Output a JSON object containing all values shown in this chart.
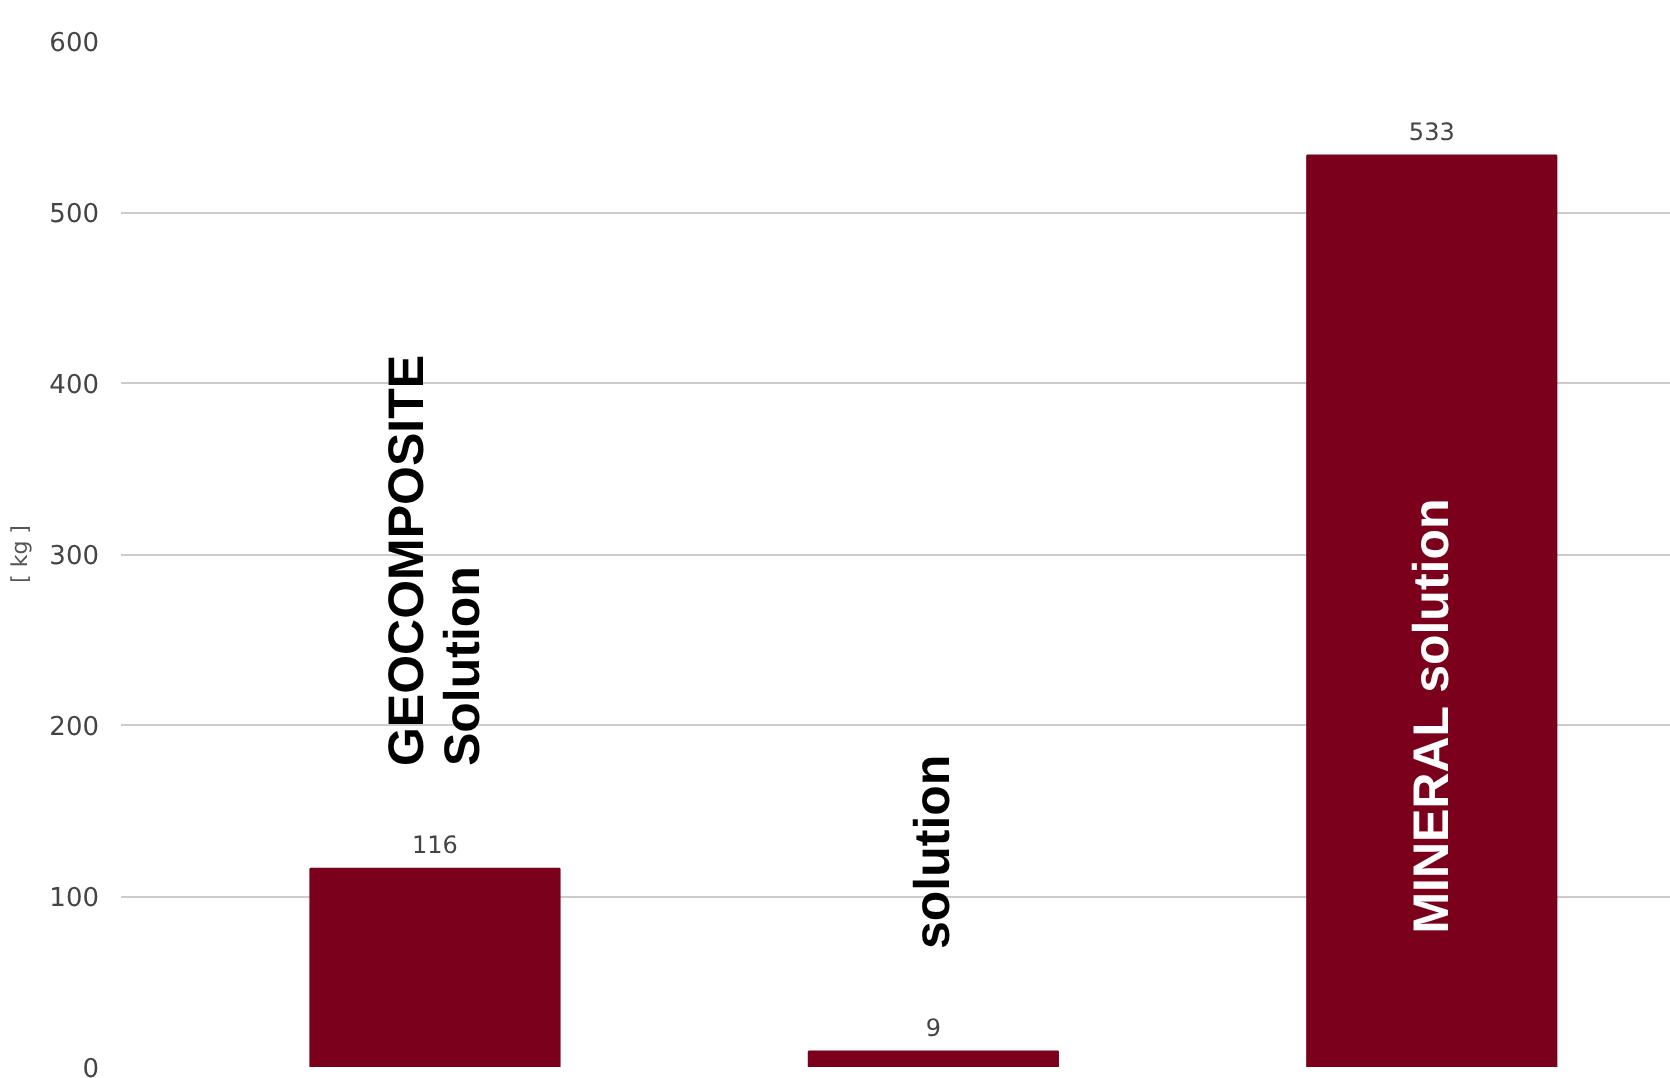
{
  "chart_data": {
    "type": "bar",
    "ylabel": "[ kg ]",
    "categories": [
      "GEOCOMPOSITE\nSolution",
      "solution",
      "MINERAL   solution"
    ],
    "values": [
      116,
      9,
      533
    ],
    "color": "#7b001c",
    "ylim": [
      0,
      600
    ],
    "yticks": [
      0,
      100,
      200,
      300,
      400,
      500,
      600
    ],
    "grid": "y",
    "data_labels": true
  }
}
